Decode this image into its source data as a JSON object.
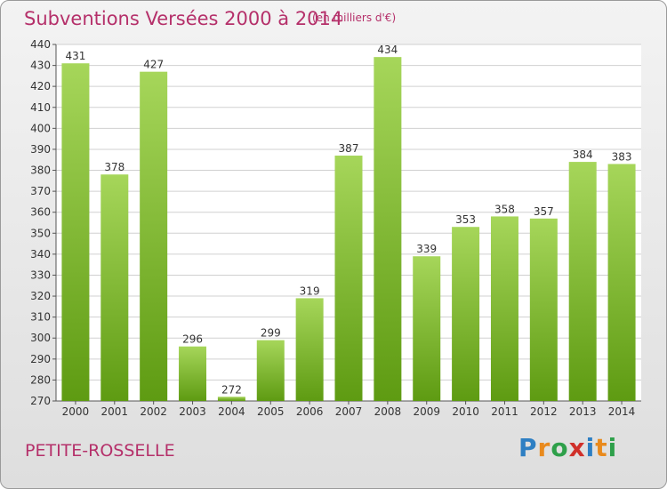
{
  "header": {
    "title": "Subventions Versées 2000 à 2014",
    "unit_note": "(en milliers d'€)"
  },
  "footer": {
    "commune": "PETITE-ROSSELLE",
    "logo_letters": [
      "P",
      "r",
      "o",
      "x",
      "i",
      "t",
      "i"
    ],
    "logo_colors": [
      "#2e7fc3",
      "#e98a1d",
      "#2ea04a",
      "#d0302a",
      "#2e7fc3",
      "#e98a1d",
      "#2ea04a"
    ]
  },
  "chart_data": {
    "type": "bar",
    "title": "Subventions Versées 2000 à 2014",
    "subtitle": "(en milliers d'€)",
    "xlabel": "",
    "ylabel": "",
    "categories": [
      "2000",
      "2001",
      "2002",
      "2003",
      "2004",
      "2005",
      "2006",
      "2007",
      "2008",
      "2009",
      "2010",
      "2011",
      "2012",
      "2013",
      "2014"
    ],
    "values": [
      431,
      378,
      427,
      296,
      272,
      299,
      319,
      387,
      434,
      339,
      353,
      358,
      357,
      384,
      383
    ],
    "ylim": [
      270,
      440
    ],
    "yticks": [
      270,
      280,
      290,
      300,
      310,
      320,
      330,
      340,
      350,
      360,
      370,
      380,
      390,
      400,
      410,
      420,
      430,
      440
    ],
    "grid": true,
    "bar_color_top": "#a6d65a",
    "bar_color_bottom": "#5e9b12"
  }
}
